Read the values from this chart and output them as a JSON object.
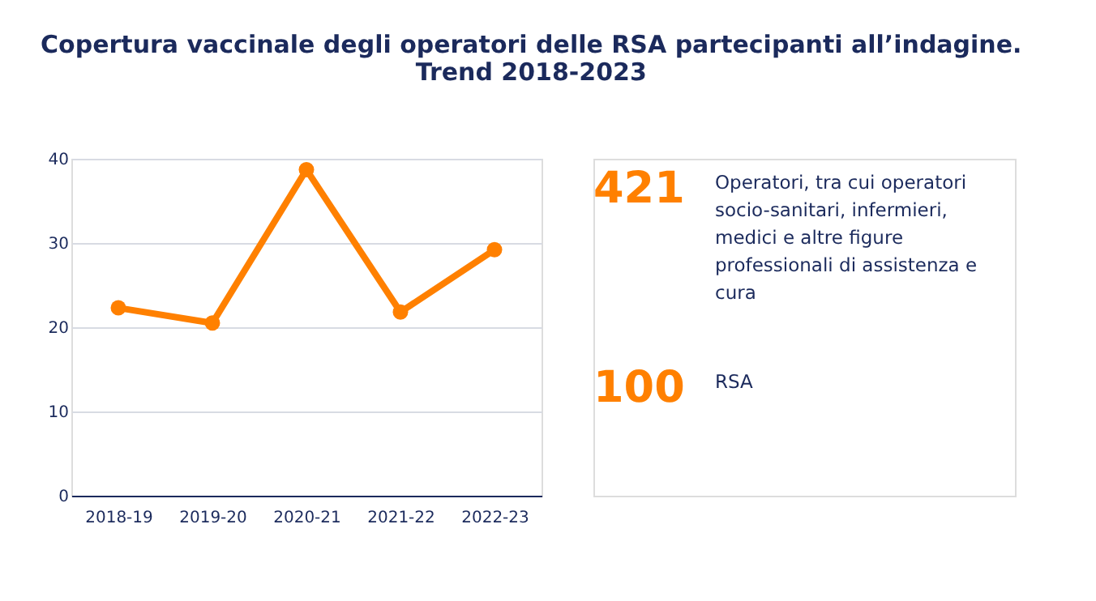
{
  "chart_data": {
    "type": "line",
    "title": "Copertura vaccinale degli operatori delle RSA partecipanti all’indagine. Trend 2018-2023",
    "categories": [
      "2018-19",
      "2019-20",
      "2020-21",
      "2021-22",
      "2022-23"
    ],
    "series": [
      {
        "color": "#ff8000",
        "values": [
          22.3,
          20.5,
          38.7,
          21.8,
          29.2
        ]
      }
    ],
    "ylim": [
      0,
      40
    ],
    "yticks": [
      0,
      10,
      20,
      30,
      40
    ],
    "grid": "y",
    "legend": false,
    "marker": "circle",
    "line_style": "solid",
    "annotations": [
      "421",
      "Operatori, tra cui operatori socio-sanitari, infermieri, medici e altre figure professionali di assistenza e cura",
      "100",
      "RSA"
    ]
  }
}
